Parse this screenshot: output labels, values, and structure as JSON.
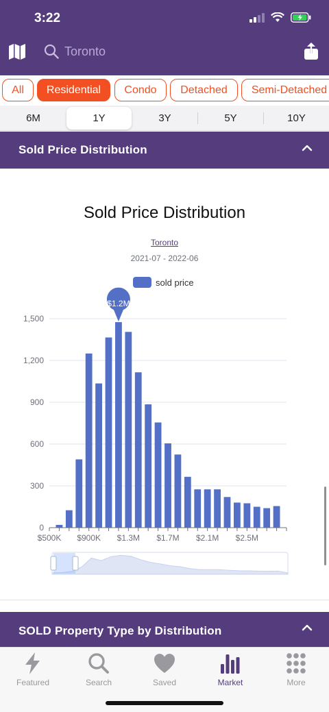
{
  "status": {
    "time": "3:22"
  },
  "search": {
    "placeholder": "Toronto"
  },
  "filters": [
    {
      "label": "All",
      "active": false
    },
    {
      "label": "Residential",
      "active": true
    },
    {
      "label": "Condo",
      "active": false
    },
    {
      "label": "Detached",
      "active": false
    },
    {
      "label": "Semi-Detached",
      "active": false
    }
  ],
  "periods": [
    {
      "label": "6M",
      "active": false
    },
    {
      "label": "1Y",
      "active": true
    },
    {
      "label": "3Y",
      "active": false
    },
    {
      "label": "5Y",
      "active": false
    },
    {
      "label": "10Y",
      "active": false
    }
  ],
  "sections": {
    "price_distribution": "Sold Price Distribution",
    "property_type": "SOLD Property Type by Distribution"
  },
  "chart_data": {
    "type": "bar",
    "title": "Sold Price Distribution",
    "subtitle": "Toronto",
    "date_range": "2021-07 - 2022-06",
    "legend": "sold price",
    "series_name": "sold price",
    "bar_color": "#5470c6",
    "categories": [
      "$500K",
      "$600K",
      "$700K",
      "$800K",
      "$900K",
      "$1.0M",
      "$1.1M",
      "$1.2M",
      "$1.3M",
      "$1.4M",
      "$1.5M",
      "$1.6M",
      "$1.7M",
      "$1.8M",
      "$1.9M",
      "$2.0M",
      "$2.1M",
      "$2.2M",
      "$2.3M",
      "$2.4M",
      "$2.5M",
      "$2.6M",
      "$2.7M",
      "$2.8M",
      "$2.9M"
    ],
    "values": [
      0,
      20,
      125,
      490,
      1250,
      1035,
      1365,
      1475,
      1405,
      1115,
      885,
      755,
      605,
      525,
      365,
      275,
      275,
      275,
      220,
      180,
      175,
      150,
      140,
      155,
      0
    ],
    "x_tick_labels": [
      "$500K",
      "$900K",
      "$1.3M",
      "$1.7M",
      "$2.1M",
      "$2.5M"
    ],
    "y_ticks": [
      0,
      300,
      600,
      900,
      1200,
      1500
    ],
    "y_tick_labels": [
      "0",
      "300",
      "600",
      "900",
      "1,200",
      "1,500"
    ],
    "ylim": [
      0,
      1500
    ],
    "highlight": {
      "category": "$1.2M",
      "label": "$1.2M"
    },
    "grid": true,
    "legend_position": "top-center"
  },
  "tabs": [
    {
      "label": "Featured",
      "icon": "bolt-icon",
      "active": false
    },
    {
      "label": "Search",
      "icon": "search-icon",
      "active": false
    },
    {
      "label": "Saved",
      "icon": "heart-icon",
      "active": false
    },
    {
      "label": "Market",
      "icon": "bar-chart-icon",
      "active": true
    },
    {
      "label": "More",
      "icon": "grid-icon",
      "active": false
    }
  ],
  "colors": {
    "header": "#553c7c",
    "accent": "#f25022",
    "bar": "#5470c6"
  }
}
